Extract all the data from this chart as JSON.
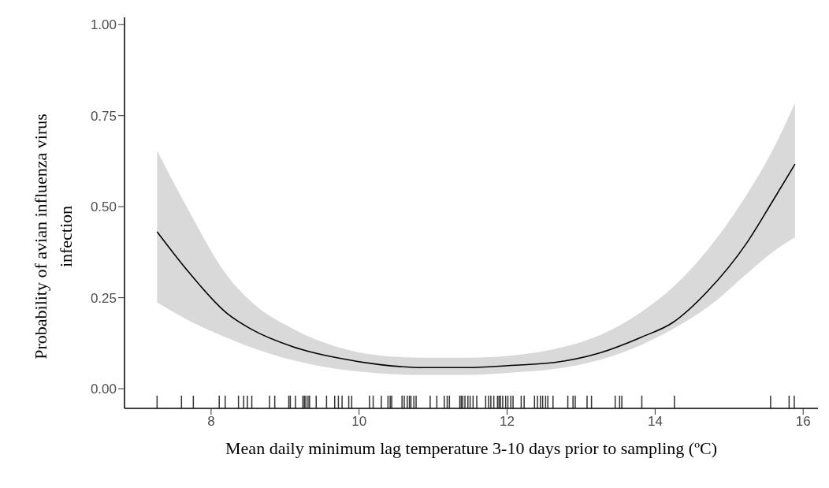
{
  "chart_data": {
    "type": "line",
    "xlabel": "Mean daily minimum lag temperature 3-10 days prior to sampling (ºC)",
    "ylabel": "Probability of avian influenza virus infection",
    "xlim": [
      6.83,
      16.2
    ],
    "xticks": [
      8,
      10,
      12,
      14,
      16
    ],
    "ylim": [
      -0.054,
      1.02
    ],
    "yticks": [
      {
        "value": 0,
        "label": "0.00"
      },
      {
        "value": 0.25,
        "label": "0.25"
      },
      {
        "value": 0.5,
        "label": "0.50"
      },
      {
        "value": 0.75,
        "label": "0.75"
      },
      {
        "value": 1,
        "label": "1.00"
      }
    ],
    "grid": false,
    "legend": false,
    "series": [
      {
        "color": "#000000",
        "x": [
          7.27,
          7.69,
          8.22,
          8.52,
          9.11,
          9.7,
          10.29,
          10.88,
          11.46,
          12.05,
          12.64,
          13.23,
          13.82,
          14.24,
          14.71,
          15.24,
          15.59,
          15.89
        ],
        "values": [
          0.431,
          0.322,
          0.206,
          0.166,
          0.115,
          0.085,
          0.066,
          0.058,
          0.058,
          0.064,
          0.072,
          0.097,
          0.142,
          0.182,
          0.268,
          0.401,
          0.516,
          0.617
        ],
        "lower": [
          0.237,
          0.188,
          0.139,
          0.115,
          0.078,
          0.054,
          0.042,
          0.038,
          0.038,
          0.044,
          0.054,
          0.078,
          0.121,
          0.164,
          0.224,
          0.316,
          0.376,
          0.416
        ],
        "upper": [
          0.654,
          0.492,
          0.31,
          0.243,
          0.164,
          0.115,
          0.091,
          0.085,
          0.085,
          0.091,
          0.109,
          0.145,
          0.212,
          0.279,
          0.382,
          0.534,
          0.656,
          0.785
        ]
      },
      {
        "type": "bar",
        "color": "#000000",
        "base": [
          -0.054,
          -0.054,
          -0.054,
          -0.054,
          -0.054,
          -0.054,
          -0.054,
          -0.054,
          -0.054,
          -0.054,
          -0.054,
          -0.054,
          -0.054,
          -0.054,
          -0.054,
          -0.054,
          -0.054,
          -0.054,
          -0.054,
          -0.054,
          -0.054,
          -0.054,
          -0.054,
          -0.054,
          -0.054,
          -0.054,
          -0.054,
          -0.054,
          -0.054,
          -0.054,
          -0.054,
          -0.054,
          -0.054,
          -0.054,
          -0.054,
          -0.054,
          -0.054,
          -0.054,
          -0.054,
          -0.054,
          -0.054,
          -0.054,
          -0.054,
          -0.054,
          -0.054,
          -0.054,
          -0.054,
          -0.054,
          -0.054,
          -0.054,
          -0.054,
          -0.054,
          -0.054,
          -0.054,
          -0.054,
          -0.054,
          -0.054,
          -0.054,
          -0.054,
          -0.054,
          -0.054,
          -0.054,
          -0.054,
          -0.054,
          -0.054,
          -0.054,
          -0.054,
          -0.054,
          -0.054,
          -0.054,
          -0.054,
          -0.054,
          -0.054,
          -0.054,
          -0.054,
          -0.054,
          -0.054,
          -0.054,
          -0.054,
          -0.054,
          -0.054,
          -0.054,
          -0.054,
          -0.054,
          -0.054,
          -0.054
        ],
        "x": [
          7.27,
          7.6,
          7.76,
          8.11,
          8.19,
          8.37,
          8.44,
          8.49,
          8.55,
          8.79,
          8.86,
          9.05,
          9.07,
          9.14,
          9.24,
          9.26,
          9.28,
          9.31,
          9.33,
          9.42,
          9.56,
          9.67,
          9.72,
          9.77,
          9.86,
          9.9,
          10.14,
          10.19,
          10.3,
          10.39,
          10.42,
          10.44,
          10.58,
          10.61,
          10.65,
          10.68,
          10.7,
          10.74,
          10.77,
          10.96,
          11.05,
          11.15,
          11.19,
          11.22,
          11.36,
          11.38,
          11.4,
          11.43,
          11.47,
          11.5,
          11.54,
          11.59,
          11.71,
          11.75,
          11.78,
          11.82,
          11.87,
          11.89,
          11.91,
          11.94,
          11.98,
          12.01,
          12.05,
          12.08,
          12.19,
          12.23,
          12.37,
          12.41,
          12.45,
          12.48,
          12.52,
          12.55,
          12.62,
          12.82,
          12.89,
          12.92,
          13.08,
          13.14,
          13.46,
          13.52,
          13.55,
          13.82,
          14.26,
          15.56,
          15.81,
          15.88
        ],
        "values": [
          0.035,
          0.035,
          0.035,
          0.035,
          0.035,
          0.035,
          0.035,
          0.035,
          0.035,
          0.035,
          0.035,
          0.035,
          0.035,
          0.035,
          0.035,
          0.035,
          0.035,
          0.035,
          0.035,
          0.035,
          0.035,
          0.035,
          0.035,
          0.035,
          0.035,
          0.035,
          0.035,
          0.035,
          0.035,
          0.035,
          0.035,
          0.035,
          0.035,
          0.035,
          0.035,
          0.035,
          0.035,
          0.035,
          0.035,
          0.035,
          0.035,
          0.035,
          0.035,
          0.035,
          0.035,
          0.035,
          0.035,
          0.035,
          0.035,
          0.035,
          0.035,
          0.035,
          0.035,
          0.035,
          0.035,
          0.035,
          0.035,
          0.035,
          0.035,
          0.035,
          0.035,
          0.035,
          0.035,
          0.035,
          0.035,
          0.035,
          0.035,
          0.035,
          0.035,
          0.035,
          0.035,
          0.035,
          0.035,
          0.035,
          0.035,
          0.035,
          0.035,
          0.035,
          0.035,
          0.035,
          0.035,
          0.035,
          0.035,
          0.035,
          0.035,
          0.035
        ]
      }
    ]
  }
}
